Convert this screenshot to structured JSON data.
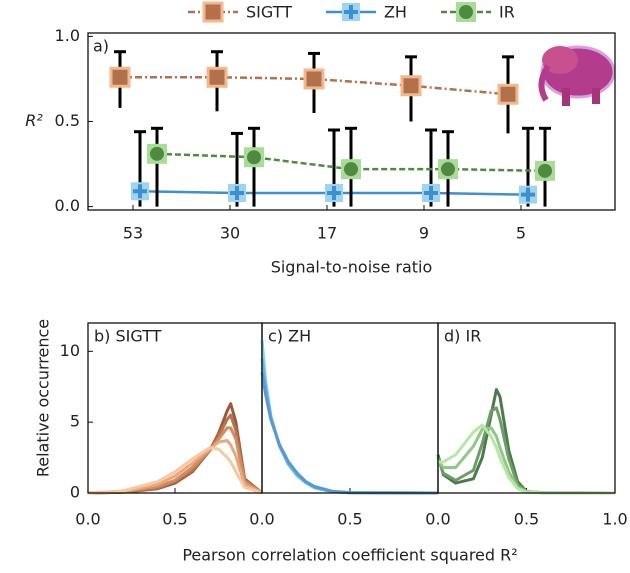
{
  "chart_data": [
    {
      "type": "box",
      "panel_label": "a)",
      "xlabel": "Signal-to-noise ratio",
      "ylabel": "R²",
      "categories": [
        "53",
        "30",
        "17",
        "9",
        "5"
      ],
      "ylim": [
        -0.02,
        1.02
      ],
      "yticks": [
        {
          "value": 0,
          "label": "0.0"
        },
        {
          "value": 0.5,
          "label": "0.5"
        },
        {
          "value": 1,
          "label": "1.0"
        }
      ],
      "legend": "top",
      "series": [
        {
          "name": "SIGTT",
          "color": "#b3714b",
          "values": [
            0.76,
            0.76,
            0.75,
            0.71,
            0.66
          ],
          "low": [
            0.58,
            0.56,
            0.55,
            0.5,
            0.43
          ],
          "high": [
            0.91,
            0.91,
            0.9,
            0.88,
            0.88
          ]
        },
        {
          "name": "ZH",
          "color": "#3d8fcf",
          "values": [
            0.09,
            0.08,
            0.08,
            0.08,
            0.07
          ],
          "low": [
            0,
            0,
            0,
            0,
            0
          ],
          "high": [
            0.44,
            0.43,
            0.45,
            0.45,
            0.46
          ]
        },
        {
          "name": "IR",
          "color": "#4f8a3f",
          "values": [
            0.31,
            0.29,
            0.22,
            0.22,
            0.21
          ],
          "low": [
            0,
            0,
            0,
            0,
            0
          ],
          "high": [
            0.46,
            0.46,
            0.46,
            0.44,
            0.46
          ]
        }
      ]
    },
    {
      "type": "line",
      "panel_label": "b) SIGTT",
      "ylabel": "Relative occurrence",
      "xlim": [
        0,
        1
      ],
      "xticks": [
        {
          "value": 0,
          "label": "0.0"
        },
        {
          "value": 0.5,
          "label": "0.5"
        }
      ],
      "ylim": [
        0,
        12
      ],
      "yticks": [
        0,
        5,
        10
      ],
      "x": [
        0,
        0.2,
        0.4,
        0.5,
        0.6,
        0.7,
        0.75,
        0.8,
        0.82,
        0.85,
        0.9,
        1.0
      ],
      "series": [
        {
          "color": "#9c5a3b",
          "values": [
            0,
            0.05,
            0.3,
            0.7,
            1.5,
            3.0,
            4.2,
            5.8,
            6.3,
            5.0,
            1.0,
            0
          ]
        },
        {
          "color": "#b8734c",
          "values": [
            0,
            0.06,
            0.35,
            0.8,
            1.6,
            3.0,
            4.0,
            5.2,
            5.5,
            4.4,
            0.9,
            0
          ]
        },
        {
          "color": "#d28c61",
          "values": [
            0,
            0.08,
            0.45,
            0.9,
            1.8,
            3.0,
            3.8,
            4.6,
            4.6,
            3.8,
            0.8,
            0
          ]
        },
        {
          "color": "#e8a87c",
          "values": [
            0,
            0.1,
            0.6,
            1.2,
            2.1,
            3.1,
            3.6,
            3.7,
            3.4,
            2.6,
            0.6,
            0
          ]
        },
        {
          "color": "#f6c9a3",
          "values": [
            0,
            0.15,
            0.8,
            1.5,
            2.4,
            3.2,
            3.1,
            2.5,
            2.2,
            1.5,
            0.4,
            0
          ]
        }
      ]
    },
    {
      "type": "line",
      "panel_label": "c) ZH",
      "xlabel": "Pearson correlation coefficient squared R²",
      "xlim": [
        0,
        1
      ],
      "xticks": [
        {
          "value": 0,
          "label": "0.0"
        },
        {
          "value": 0.5,
          "label": "0.5"
        }
      ],
      "ylim": [
        0,
        12
      ],
      "x": [
        0,
        0.02,
        0.05,
        0.1,
        0.15,
        0.2,
        0.25,
        0.3,
        0.4,
        0.5,
        1.0
      ],
      "series": [
        {
          "color": "#7fd3f2",
          "values": [
            10.8,
            8.0,
            5.5,
            3.3,
            2.0,
            1.2,
            0.7,
            0.35,
            0.08,
            0.02,
            0
          ]
        },
        {
          "color": "#64b4e6",
          "values": [
            9.5,
            7.5,
            5.3,
            3.3,
            2.1,
            1.3,
            0.75,
            0.4,
            0.1,
            0.02,
            0
          ]
        },
        {
          "color": "#5a98d2",
          "values": [
            8.5,
            7.0,
            5.2,
            3.4,
            2.2,
            1.4,
            0.8,
            0.45,
            0.12,
            0.03,
            0
          ]
        }
      ]
    },
    {
      "type": "line",
      "panel_label": "d) IR",
      "xlim": [
        0,
        1
      ],
      "xticks": [
        {
          "value": 0,
          "label": "0.0"
        },
        {
          "value": 0.5,
          "label": "0.5"
        },
        {
          "value": 1,
          "label": "1.0"
        }
      ],
      "ylim": [
        0,
        12
      ],
      "x": [
        0,
        0.03,
        0.1,
        0.2,
        0.25,
        0.3,
        0.33,
        0.35,
        0.4,
        0.45,
        0.5,
        0.6,
        1.0
      ],
      "series": [
        {
          "color": "#4c7a4c",
          "values": [
            2.7,
            1.3,
            0.7,
            1.0,
            2.5,
            5.5,
            7.3,
            6.8,
            3.0,
            0.8,
            0.1,
            0.02,
            0
          ]
        },
        {
          "color": "#6c9e66",
          "values": [
            2.5,
            1.4,
            0.9,
            1.6,
            3.5,
            5.8,
            6.0,
            5.2,
            2.4,
            0.6,
            0.1,
            0.02,
            0
          ]
        },
        {
          "color": "#92c886",
          "values": [
            2.3,
            1.8,
            1.8,
            3.3,
            4.5,
            4.6,
            4.0,
            3.2,
            1.5,
            0.4,
            0.1,
            0.02,
            0
          ]
        },
        {
          "color": "#b5e8a4",
          "values": [
            2.2,
            2.2,
            2.7,
            4.3,
            4.8,
            4.0,
            3.2,
            2.5,
            1.1,
            0.3,
            0.05,
            0.01,
            0
          ]
        }
      ]
    }
  ]
}
